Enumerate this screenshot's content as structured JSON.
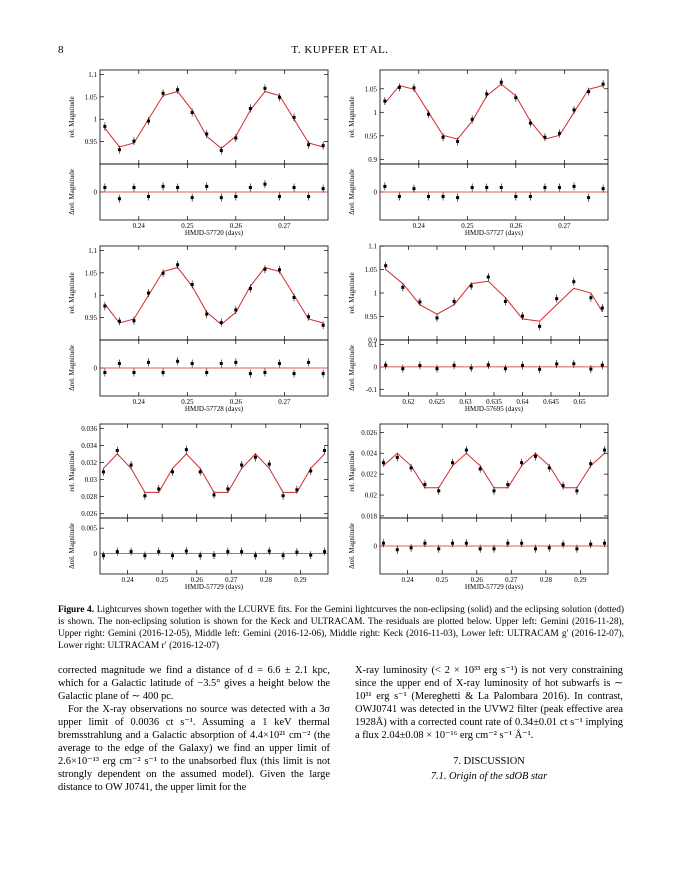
{
  "header": {
    "page": "8",
    "running_head": "T. KUPFER ET AL."
  },
  "chart_data": [
    {
      "type": "scatter",
      "ylabel": "rel. Magnitude",
      "residual_ylabel": "Δrel. Magnitude",
      "xlabel": "HMJD-57720 (days)",
      "xlim": [
        0.232,
        0.279
      ],
      "xticks": [
        0.24,
        0.25,
        0.26,
        0.27
      ],
      "ylim": [
        0.9,
        1.11
      ],
      "yticks": [
        0.95,
        1,
        1.05,
        1.1
      ],
      "residual_ylim": [
        -0.025,
        0.025
      ],
      "residual_yticks": [
        0
      ],
      "color": "#000000",
      "model_color": "#d62728",
      "x": [
        0.233,
        0.236,
        0.239,
        0.242,
        0.245,
        0.248,
        0.251,
        0.254,
        0.257,
        0.26,
        0.263,
        0.266,
        0.269,
        0.272,
        0.275,
        0.278
      ],
      "values": [
        0.984,
        0.932,
        0.951,
        0.996,
        1.058,
        1.066,
        1.015,
        0.967,
        0.93,
        0.958,
        1.024,
        1.069,
        1.049,
        1.004,
        0.943,
        0.941
      ],
      "model": [
        0.98,
        0.938,
        0.947,
        1.0,
        1.053,
        1.062,
        1.02,
        0.962,
        0.935,
        0.962,
        1.02,
        1.062,
        1.053,
        1.0,
        0.947,
        0.938
      ],
      "residuals": [
        0.004,
        -0.006,
        0.004,
        -0.004,
        0.005,
        0.004,
        -0.005,
        0.005,
        -0.005,
        -0.004,
        0.004,
        0.007,
        -0.004,
        0.004,
        -0.004,
        0.003
      ]
    },
    {
      "type": "scatter",
      "ylabel": "rel. Magnitude",
      "residual_ylabel": "Δrel. Magnitude",
      "xlabel": "HMJD-57727 (days)",
      "xlim": [
        0.232,
        0.279
      ],
      "xticks": [
        0.24,
        0.25,
        0.26,
        0.27
      ],
      "ylim": [
        0.89,
        1.09
      ],
      "yticks": [
        0.9,
        0.95,
        1,
        1.05
      ],
      "residual_ylim": [
        -0.025,
        0.025
      ],
      "residual_yticks": [
        0
      ],
      "color": "#000000",
      "model_color": "#d62728",
      "x": [
        0.233,
        0.236,
        0.239,
        0.242,
        0.245,
        0.248,
        0.251,
        0.254,
        0.257,
        0.26,
        0.263,
        0.266,
        0.269,
        0.272,
        0.275,
        0.278
      ],
      "values": [
        1.024,
        1.053,
        1.052,
        0.996,
        0.947,
        0.938,
        0.985,
        1.039,
        1.064,
        1.031,
        0.977,
        0.947,
        0.955,
        1.005,
        1.044,
        1.06
      ],
      "model": [
        1.019,
        1.057,
        1.049,
        1.0,
        0.951,
        0.943,
        0.981,
        1.035,
        1.06,
        1.035,
        0.981,
        0.943,
        0.951,
        1.0,
        1.049,
        1.057
      ],
      "residuals": [
        0.005,
        -0.004,
        0.003,
        -0.004,
        -0.004,
        -0.005,
        0.004,
        0.004,
        0.004,
        -0.004,
        -0.004,
        0.004,
        0.004,
        0.005,
        -0.005,
        0.003
      ]
    },
    {
      "type": "scatter",
      "ylabel": "rel. Magnitude",
      "residual_ylabel": "Δrel. Magnitude",
      "xlabel": "HMJD-57728 (days)",
      "xlim": [
        0.232,
        0.279
      ],
      "xticks": [
        0.24,
        0.25,
        0.26,
        0.27
      ],
      "ylim": [
        0.9,
        1.11
      ],
      "yticks": [
        0.95,
        1,
        1.05,
        1.1
      ],
      "residual_ylim": [
        -0.025,
        0.025
      ],
      "residual_yticks": [
        0
      ],
      "color": "#000000",
      "model_color": "#d62728",
      "x": [
        0.233,
        0.236,
        0.239,
        0.242,
        0.245,
        0.248,
        0.251,
        0.254,
        0.257,
        0.26,
        0.263,
        0.266,
        0.269,
        0.272,
        0.275,
        0.278
      ],
      "values": [
        0.976,
        0.942,
        0.943,
        1.005,
        1.049,
        1.068,
        1.024,
        0.958,
        0.939,
        0.967,
        1.015,
        1.058,
        1.057,
        0.995,
        0.952,
        0.933
      ],
      "model": [
        0.98,
        0.938,
        0.947,
        1.0,
        1.053,
        1.062,
        1.02,
        0.962,
        0.935,
        0.962,
        1.02,
        1.062,
        1.053,
        1.0,
        0.947,
        0.938
      ],
      "residuals": [
        -0.004,
        0.004,
        -0.004,
        0.005,
        -0.004,
        0.006,
        0.004,
        -0.004,
        0.004,
        0.005,
        -0.005,
        -0.004,
        0.004,
        -0.005,
        0.005,
        -0.005
      ]
    },
    {
      "type": "scatter",
      "ylabel": "rel. Magnitude",
      "residual_ylabel": "Δrel. Magnitude",
      "xlabel": "HMJD-57695 (days)",
      "xlim": [
        0.615,
        0.655
      ],
      "xticks": [
        0.62,
        0.625,
        0.63,
        0.635,
        0.64,
        0.645,
        0.65
      ],
      "ylim": [
        0.9,
        1.1
      ],
      "yticks": [
        0.9,
        0.95,
        1,
        1.05,
        1.1
      ],
      "residual_ylim": [
        -0.13,
        0.12
      ],
      "residual_yticks": [
        -0.1,
        0,
        0.1
      ],
      "color": "#000000",
      "model_color": "#d62728",
      "x": [
        0.616,
        0.619,
        0.622,
        0.625,
        0.628,
        0.631,
        0.634,
        0.637,
        0.64,
        0.643,
        0.646,
        0.649,
        0.652,
        0.654
      ],
      "values": [
        1.058,
        1.012,
        0.981,
        0.947,
        0.982,
        1.015,
        1.034,
        0.982,
        0.951,
        0.929,
        0.988,
        1.024,
        0.99,
        0.968
      ],
      "model": [
        1.05,
        1.02,
        0.975,
        0.955,
        0.975,
        1.02,
        1.025,
        0.99,
        0.945,
        0.94,
        0.975,
        1.01,
        1.0,
        0.96
      ],
      "residuals": [
        0.008,
        -0.008,
        0.006,
        -0.008,
        0.007,
        -0.005,
        0.009,
        -0.008,
        0.006,
        -0.011,
        0.013,
        0.014,
        -0.01,
        0.008
      ]
    },
    {
      "type": "scatter",
      "ylabel": "rel. Magnitude",
      "residual_ylabel": "Δrel. Magnitude",
      "xlabel": "HMJD-57729 (days)",
      "xlim": [
        0.232,
        0.298
      ],
      "xticks": [
        0.24,
        0.25,
        0.26,
        0.27,
        0.28,
        0.29
      ],
      "ylim": [
        0.0255,
        0.0365
      ],
      "yticks": [
        0.026,
        0.028,
        0.03,
        0.032,
        0.034,
        0.036
      ],
      "residual_ylim": [
        -0.004,
        0.007
      ],
      "residual_yticks": [
        0,
        0.005
      ],
      "color": "#000000",
      "model_color": "#d62728",
      "x": [
        0.233,
        0.237,
        0.241,
        0.245,
        0.249,
        0.253,
        0.257,
        0.261,
        0.265,
        0.269,
        0.273,
        0.277,
        0.281,
        0.285,
        0.289,
        0.293,
        0.297
      ],
      "values": [
        0.0309,
        0.0334,
        0.0317,
        0.0281,
        0.0289,
        0.0309,
        0.0335,
        0.0309,
        0.0282,
        0.0289,
        0.0317,
        0.0326,
        0.0318,
        0.0281,
        0.0288,
        0.031,
        0.0334
      ],
      "model": [
        0.0313,
        0.033,
        0.0313,
        0.0285,
        0.0285,
        0.0313,
        0.033,
        0.0313,
        0.0285,
        0.0285,
        0.0313,
        0.033,
        0.0313,
        0.0285,
        0.0285,
        0.0313,
        0.033
      ],
      "residuals": [
        -0.0004,
        0.0004,
        0.0004,
        -0.0004,
        0.0004,
        -0.0004,
        0.0005,
        -0.0004,
        -0.0003,
        0.0004,
        0.0004,
        -0.0004,
        0.0005,
        -0.0004,
        0.0003,
        -0.0003,
        0.0004
      ]
    },
    {
      "type": "scatter",
      "ylabel": "rel. Magnitude",
      "residual_ylabel": "Δrel. Magnitude",
      "xlabel": "HMJD-57729 (days)",
      "xlim": [
        0.232,
        0.298
      ],
      "xticks": [
        0.24,
        0.25,
        0.26,
        0.27,
        0.28,
        0.29
      ],
      "ylim": [
        0.0178,
        0.0268
      ],
      "yticks": [
        0.018,
        0.02,
        0.022,
        0.024,
        0.026
      ],
      "residual_ylim": [
        -0.003,
        0.003
      ],
      "residual_yticks": [
        0
      ],
      "color": "#000000",
      "model_color": "#d62728",
      "x": [
        0.233,
        0.237,
        0.241,
        0.245,
        0.249,
        0.253,
        0.257,
        0.261,
        0.265,
        0.269,
        0.273,
        0.277,
        0.281,
        0.285,
        0.289,
        0.293,
        0.297
      ],
      "values": [
        0.0231,
        0.0236,
        0.0226,
        0.021,
        0.0204,
        0.0231,
        0.0243,
        0.0225,
        0.0204,
        0.021,
        0.0231,
        0.0237,
        0.0226,
        0.0209,
        0.0204,
        0.023,
        0.0243
      ],
      "model": [
        0.0228,
        0.024,
        0.0228,
        0.0207,
        0.0207,
        0.0228,
        0.024,
        0.0228,
        0.0207,
        0.0207,
        0.0228,
        0.024,
        0.0228,
        0.0207,
        0.0207,
        0.0228,
        0.024
      ],
      "residuals": [
        0.0003,
        -0.0004,
        -0.0002,
        0.0003,
        -0.0003,
        0.0003,
        0.0003,
        -0.0003,
        -0.0003,
        0.0003,
        0.0003,
        -0.0003,
        -0.0002,
        0.0002,
        -0.0003,
        0.0002,
        0.0003
      ]
    }
  ],
  "caption": {
    "label": "Figure 4.",
    "text": "Lightcurves shown together with the LCURVE fits. For the Gemini lightcurves the non-eclipsing (solid) and the eclipsing solution (dotted) is shown. The non-eclipsing solution is shown for the Keck and ULTRACAM. The residuals are plotted below. Upper left: Gemini (2016-11-28), Upper right: Gemini (2016-12-05), Middle left: Gemini (2016-12-06), Middle right: Keck (2016-11-03), Lower left: ULTRACAM g′ (2016-12-07), Lower right: ULTRACAM r′ (2016-12-07)"
  },
  "body": {
    "left": [
      "corrected magnitude we find a distance of d = 6.6 ± 2.1 kpc, which for a Galactic latitude of −3.5° gives a height below the Galactic plane of ∼ 400 pc.",
      "For the X-ray observations no source was detected with a 3σ upper limit of 0.0036 ct s⁻¹. Assuming a 1 keV thermal bremsstrahlung and a Galactic absorption of 4.4×10²¹ cm⁻² (the average to the edge of the Galaxy) we find an upper limit of 2.6×10⁻¹³ erg cm⁻² s⁻¹ to the unabsorbed flux (this limit is not strongly dependent on the assumed model). Given the large distance to OW J0741, the upper limit for the"
    ],
    "right": [
      "X-ray luminosity (< 2 × 10³³ erg s⁻¹) is not very constraining since the upper end of X-ray luminosity of hot subwarfs is ∼ 10³¹ erg s⁻¹ (Mereghetti & La Palombara 2016). In contrast, OWJ0741 was detected in the UVW2 filter (peak effective area 1928Å) with a corrected count rate of 0.34±0.01 ct s⁻¹ implying a flux 2.04±0.08 × 10⁻¹⁶ erg cm⁻² s⁻¹ Å⁻¹."
    ],
    "section": "7. DISCUSSION",
    "subsection": "7.1. Origin of the sdOB star"
  }
}
